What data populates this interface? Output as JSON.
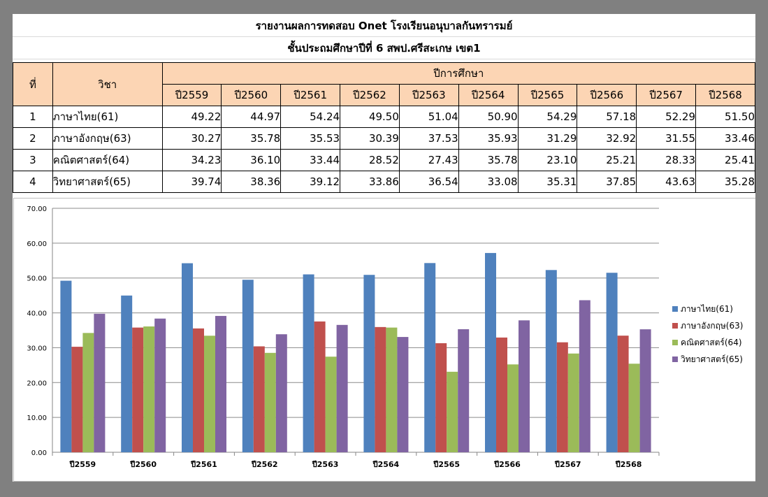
{
  "header": {
    "title": "รายงานผลการทดสอบ Onet  โรงเรียนอนุบาลกันทรารมย์",
    "subtitle": "ชั้นประถมศึกษาปีที่ 6  สพป.ศรีสะเกษ เขต1"
  },
  "table": {
    "col_index": "ที่",
    "col_subject": "วิชา",
    "col_years_group": "ปีการศึกษา",
    "years": [
      "ปี2559",
      "ปี2560",
      "ปี2561",
      "ปี2562",
      "ปี2563",
      "ปี2564",
      "ปี2565",
      "ปี2566",
      "ปี2567",
      "ปี2568"
    ],
    "rows": [
      {
        "index": "1",
        "subject": "ภาษาไทย(61)",
        "values": [
          "49.22",
          "44.97",
          "54.24",
          "49.50",
          "51.04",
          "50.90",
          "54.29",
          "57.18",
          "52.29",
          "51.50"
        ]
      },
      {
        "index": "2",
        "subject": "ภาษาอังกฤษ(63)",
        "values": [
          "30.27",
          "35.78",
          "35.53",
          "30.39",
          "37.53",
          "35.93",
          "31.29",
          "32.92",
          "31.55",
          "33.46"
        ]
      },
      {
        "index": "3",
        "subject": "คณิตศาสตร์(64)",
        "values": [
          "34.23",
          "36.10",
          "33.44",
          "28.52",
          "27.43",
          "35.78",
          "23.10",
          "25.21",
          "28.33",
          "25.41"
        ]
      },
      {
        "index": "4",
        "subject": "วิทยาศาสตร์(65)",
        "values": [
          "39.74",
          "38.36",
          "39.12",
          "33.86",
          "36.54",
          "33.08",
          "35.31",
          "37.85",
          "43.63",
          "35.28"
        ]
      }
    ]
  },
  "chart_data": {
    "type": "bar",
    "categories": [
      "ปี2559",
      "ปี2560",
      "ปี2561",
      "ปี2562",
      "ปี2563",
      "ปี2564",
      "ปี2565",
      "ปี2566",
      "ปี2567",
      "ปี2568"
    ],
    "series": [
      {
        "name": "ภาษาไทย(61)",
        "color": "#4f81bd",
        "values": [
          49.22,
          44.97,
          54.24,
          49.5,
          51.04,
          50.9,
          54.29,
          57.18,
          52.29,
          51.5
        ]
      },
      {
        "name": "ภาษาอังกฤษ(63)",
        "color": "#c0504d",
        "values": [
          30.27,
          35.78,
          35.53,
          30.39,
          37.53,
          35.93,
          31.29,
          32.92,
          31.55,
          33.46
        ]
      },
      {
        "name": "คณิตศาสตร์(64)",
        "color": "#9bbb59",
        "values": [
          34.23,
          36.1,
          33.44,
          28.52,
          27.43,
          35.78,
          23.1,
          25.21,
          28.33,
          25.41
        ]
      },
      {
        "name": "วิทยาศาสตร์(65)",
        "color": "#8064a2",
        "values": [
          39.74,
          38.36,
          39.12,
          33.86,
          36.54,
          33.08,
          35.31,
          37.85,
          43.63,
          35.28
        ]
      }
    ],
    "ylim": [
      0,
      70
    ],
    "yticks": [
      "0.00",
      "10.00",
      "20.00",
      "30.00",
      "40.00",
      "50.00",
      "60.00",
      "70.00"
    ],
    "grid": true,
    "legend_position": "right"
  }
}
